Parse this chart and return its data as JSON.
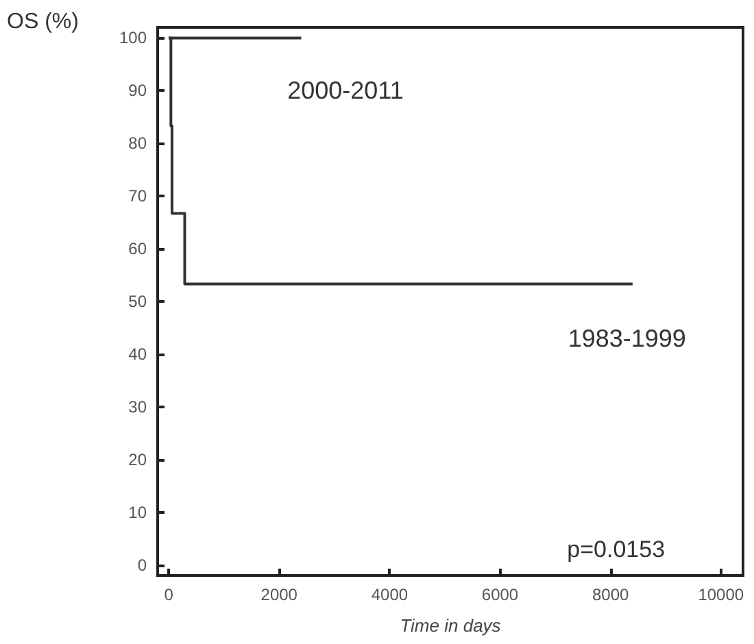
{
  "chart_data": {
    "type": "step",
    "xlabel": "Time in days",
    "ylabel": "OS (%)",
    "series": [
      {
        "name": "2000-2011",
        "color": "#333333",
        "x": [
          0,
          2400
        ],
        "values": [
          100,
          100
        ]
      },
      {
        "name": "1983-1999",
        "color": "#333333",
        "x": [
          0,
          40,
          60,
          290,
          8400
        ],
        "values": [
          100,
          83.3,
          66.7,
          53.3,
          53.3
        ]
      }
    ],
    "xlim": [
      -200,
      10400
    ],
    "xticks": [
      0,
      2000,
      4000,
      6000,
      8000,
      10000
    ],
    "ylim": [
      -2,
      102
    ],
    "yticks": [
      0,
      10,
      20,
      30,
      40,
      50,
      60,
      70,
      80,
      90,
      100
    ],
    "annotations": [
      "p=0.0153"
    ],
    "grid": false,
    "legend": false,
    "marker": "none",
    "line_style": "solid"
  }
}
